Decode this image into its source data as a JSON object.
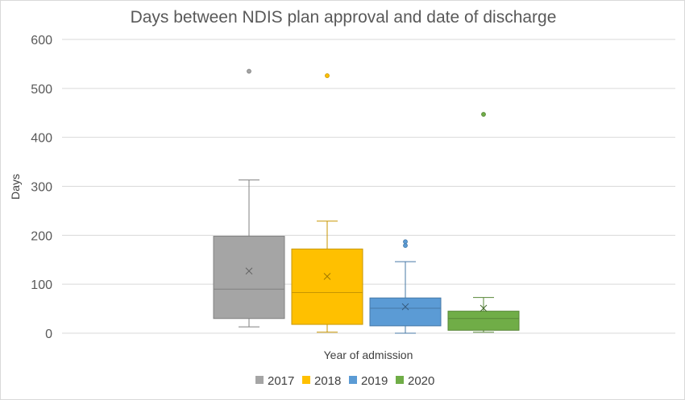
{
  "chart_data": {
    "type": "boxplot",
    "title": "Days between NDIS plan approval and date of discharge",
    "xlabel": "Year of admission",
    "ylabel": "Days",
    "ylim": [
      0,
      600
    ],
    "yticks": [
      0,
      100,
      200,
      300,
      400,
      500,
      600
    ],
    "grid": true,
    "legend_position": "bottom",
    "series": [
      {
        "name": "2017",
        "color": "#a5a5a5",
        "min": 13,
        "q1": 30,
        "median": 90,
        "q3": 198,
        "max": 313,
        "mean": 127,
        "outliers": [
          535
        ]
      },
      {
        "name": "2018",
        "color": "#ffc000",
        "min": 2,
        "q1": 18,
        "median": 83,
        "q3": 172,
        "max": 229,
        "mean": 116,
        "outliers": [
          526
        ]
      },
      {
        "name": "2019",
        "color": "#5b9bd5",
        "min": 0,
        "q1": 15,
        "median": 51,
        "q3": 72,
        "max": 146,
        "mean": 54,
        "outliers": [
          179,
          187
        ]
      },
      {
        "name": "2020",
        "color": "#70ad47",
        "min": 2,
        "q1": 6,
        "median": 30,
        "q3": 45,
        "max": 73,
        "mean": 51,
        "outliers": [
          447
        ]
      }
    ]
  }
}
